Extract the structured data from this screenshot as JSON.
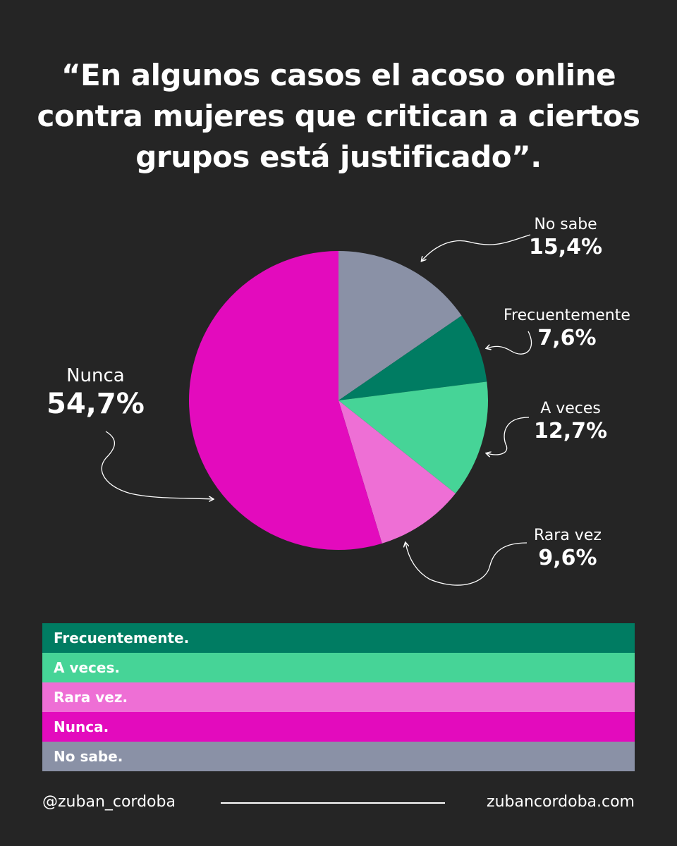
{
  "title_lines": [
    "“En algunos casos el acoso online",
    "contra mujeres que critican a ciertos",
    "grupos está justificado”."
  ],
  "chart_data": {
    "type": "pie",
    "start": "12 o'clock",
    "direction": "clockwise",
    "slices": [
      {
        "label": "No sabe",
        "value": 15.4,
        "display": "15,4%",
        "color": "#8a91a6"
      },
      {
        "label": "Frecuentemente",
        "value": 7.6,
        "display": "7,6%",
        "color": "#007c62"
      },
      {
        "label": "A veces",
        "value": 12.7,
        "display": "12,7%",
        "color": "#46d497"
      },
      {
        "label": "Rara vez",
        "value": 9.6,
        "display": "9,6%",
        "color": "#ee6fd5"
      },
      {
        "label": "Nunca",
        "value": 54.7,
        "display": "54,7%",
        "color": "#e30bbd"
      }
    ]
  },
  "legend": [
    {
      "label": "Frecuentemente.",
      "color": "#007c62"
    },
    {
      "label": "A veces.",
      "color": "#46d497"
    },
    {
      "label": "Rara vez.",
      "color": "#ee6fd5"
    },
    {
      "label": "Nunca.",
      "color": "#e30bbd"
    },
    {
      "label": "No sabe.",
      "color": "#8a91a6"
    }
  ],
  "footer": {
    "handle": "@zuban_cordoba",
    "website": "zubancordoba.com"
  }
}
